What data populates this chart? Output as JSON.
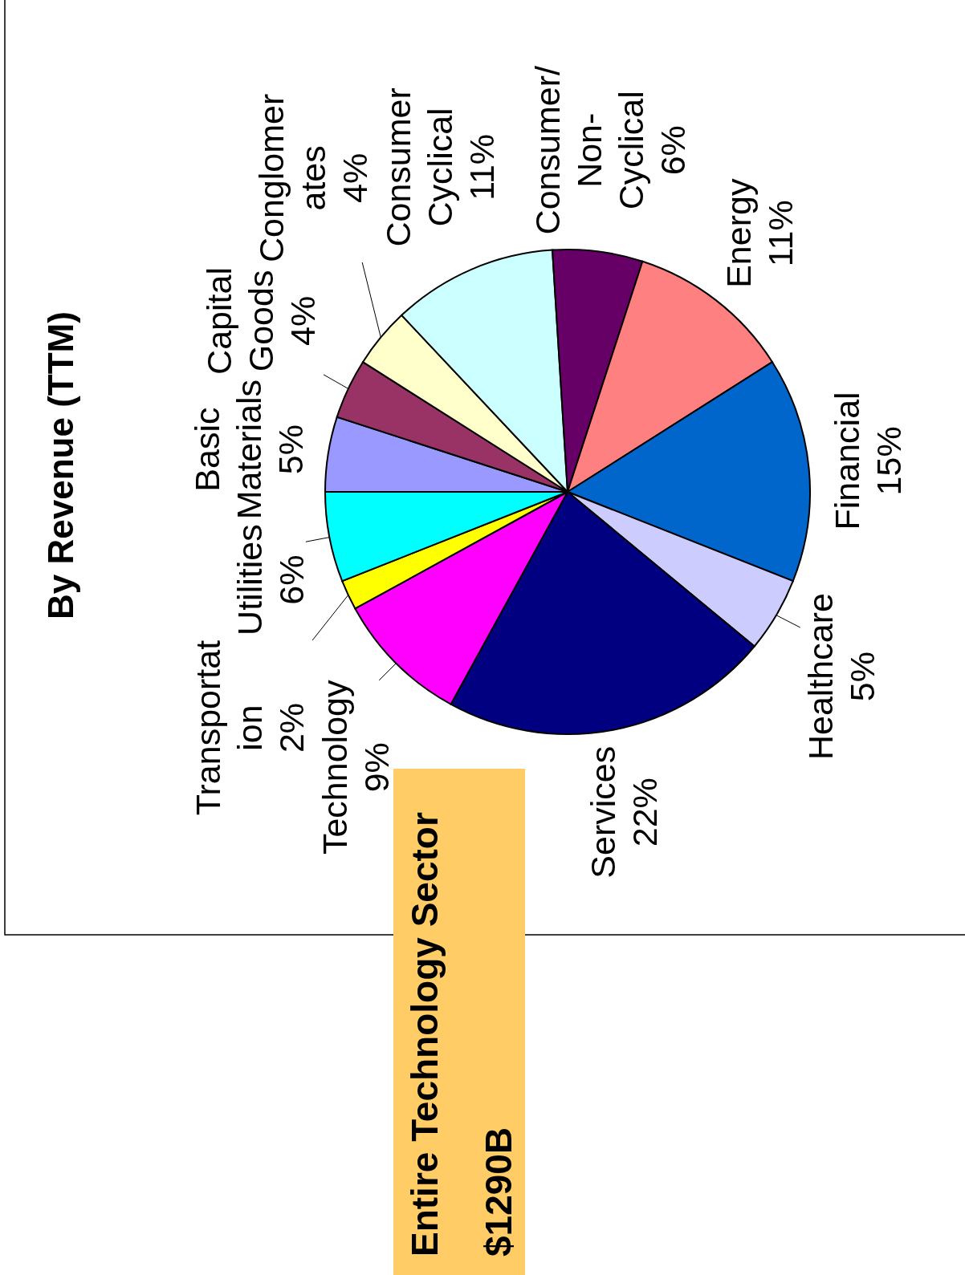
{
  "chart_data": {
    "type": "pie",
    "title": "By Revenue (TTM)",
    "categories": [
      "Basic Materials",
      "Capital Goods",
      "Conglomerates",
      "Consumer Cyclical",
      "Consumer/Non-Cyclical",
      "Energy",
      "Financial",
      "Healthcare",
      "Services",
      "Technology",
      "Transportation",
      "Utilities"
    ],
    "values": [
      5,
      4,
      4,
      11,
      6,
      11,
      15,
      5,
      22,
      9,
      2,
      6
    ],
    "value_labels": [
      "5%",
      "4%",
      "4%",
      "11%",
      "6%",
      "11%",
      "15%",
      "5%",
      "22%",
      "9%",
      "2%",
      "6%"
    ],
    "colors": [
      "#9999ff",
      "#993366",
      "#ffffcc",
      "#ccffff",
      "#660066",
      "#ff8080",
      "#0066cc",
      "#ccccff",
      "#000080",
      "#ff00ff",
      "#ffff00",
      "#00ffff"
    ],
    "annotations": [
      "Entire Technology Sector",
      "$1290B"
    ]
  }
}
